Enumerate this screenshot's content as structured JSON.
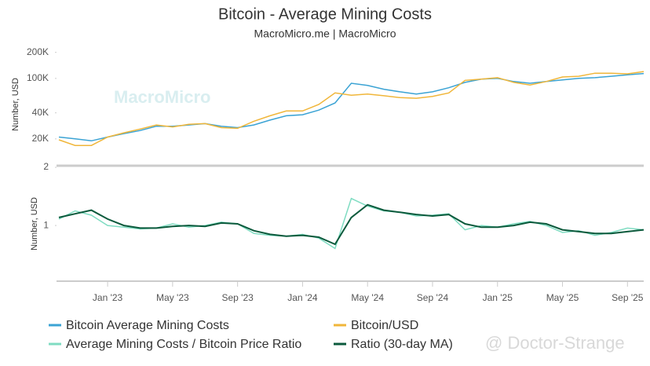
{
  "chart_data": [
    {
      "type": "line",
      "title": "Bitcoin - Average Mining Costs",
      "subtitle": "MacroMicro.me | MacroMicro",
      "watermark": "MacroMicro",
      "ylabel": "Number, USD",
      "log_scale": true,
      "grid": false,
      "ylim": [
        10000,
        250000
      ],
      "yticks": [
        {
          "value": 20000,
          "label": "20K"
        },
        {
          "value": 40000,
          "label": "40K"
        },
        {
          "value": 100000,
          "label": "100K"
        },
        {
          "value": 200000,
          "label": "200K"
        }
      ],
      "x": [
        "2022-10",
        "2022-11",
        "2022-12",
        "2023-01",
        "2023-02",
        "2023-03",
        "2023-04",
        "2023-05",
        "2023-06",
        "2023-07",
        "2023-08",
        "2023-09",
        "2023-10",
        "2023-11",
        "2023-12",
        "2024-01",
        "2024-02",
        "2024-03",
        "2024-04",
        "2024-05",
        "2024-06",
        "2024-07",
        "2024-08",
        "2024-09",
        "2024-10",
        "2024-11",
        "2024-12",
        "2025-01",
        "2025-02",
        "2025-03",
        "2025-04",
        "2025-05",
        "2025-06",
        "2025-07",
        "2025-08",
        "2025-09",
        "2025-10"
      ],
      "series": [
        {
          "name": "Bitcoin Average Mining Costs",
          "color": "#3ba3d4",
          "values": [
            21000,
            20000,
            19000,
            21000,
            23000,
            25000,
            28000,
            28000,
            29000,
            30000,
            28000,
            27000,
            29000,
            33000,
            37000,
            38000,
            43000,
            52000,
            88000,
            83000,
            75000,
            70000,
            66000,
            70000,
            78000,
            90000,
            98000,
            100000,
            92000,
            88000,
            92000,
            96000,
            100000,
            102000,
            106000,
            110000,
            114000
          ]
        },
        {
          "name": "Bitcoin/USD",
          "color": "#f0b63a",
          "values": [
            19500,
            16800,
            16800,
            21000,
            23500,
            26000,
            29000,
            27500,
            29500,
            30000,
            27000,
            26500,
            32000,
            37000,
            42000,
            42000,
            50000,
            68000,
            64000,
            66000,
            63000,
            60000,
            59000,
            62000,
            68000,
            95000,
            98000,
            102000,
            90000,
            84000,
            92000,
            104000,
            106000,
            115000,
            115000,
            113000,
            120000
          ]
        }
      ]
    },
    {
      "type": "line",
      "ylabel": "Number, USD",
      "log_scale": true,
      "grid": false,
      "ylim": [
        0.52,
        2
      ],
      "yticks": [
        1,
        2
      ],
      "x": [
        "2022-10",
        "2022-11",
        "2022-12",
        "2023-01",
        "2023-02",
        "2023-03",
        "2023-04",
        "2023-05",
        "2023-06",
        "2023-07",
        "2023-08",
        "2023-09",
        "2023-10",
        "2023-11",
        "2023-12",
        "2024-01",
        "2024-02",
        "2024-03",
        "2024-04",
        "2024-05",
        "2024-06",
        "2024-07",
        "2024-08",
        "2024-09",
        "2024-10",
        "2024-11",
        "2024-12",
        "2025-01",
        "2025-02",
        "2025-03",
        "2025-04",
        "2025-05",
        "2025-06",
        "2025-07",
        "2025-08",
        "2025-09",
        "2025-10"
      ],
      "xticks": [
        {
          "value": "2023-01",
          "label": "Jan '23"
        },
        {
          "value": "2023-05",
          "label": "May '23"
        },
        {
          "value": "2023-09",
          "label": "Sep '23"
        },
        {
          "value": "2024-01",
          "label": "Jan '24"
        },
        {
          "value": "2024-05",
          "label": "May '24"
        },
        {
          "value": "2024-09",
          "label": "Sep '24"
        },
        {
          "value": "2025-01",
          "label": "Jan '25"
        },
        {
          "value": "2025-05",
          "label": "May '25"
        },
        {
          "value": "2025-09",
          "label": "Sep '25"
        }
      ],
      "series": [
        {
          "name": "Average Mining Costs / Bitcoin Price Ratio",
          "color": "#7fdcc2",
          "values": [
            1.08,
            1.19,
            1.13,
            1.0,
            0.98,
            0.96,
            0.97,
            1.02,
            0.98,
            1.0,
            1.04,
            1.02,
            0.91,
            0.89,
            0.88,
            0.9,
            0.86,
            0.76,
            1.38,
            1.26,
            1.19,
            1.17,
            1.12,
            1.13,
            1.15,
            0.95,
            1.0,
            0.98,
            1.02,
            1.05,
            1.0,
            0.92,
            0.94,
            0.89,
            0.92,
            0.97,
            0.95
          ]
        },
        {
          "name": "Ratio (30-day MA)",
          "color": "#0b5a3c",
          "values": [
            1.1,
            1.15,
            1.2,
            1.08,
            1.0,
            0.97,
            0.97,
            0.99,
            1.0,
            0.99,
            1.03,
            1.02,
            0.94,
            0.9,
            0.88,
            0.89,
            0.87,
            0.8,
            1.1,
            1.28,
            1.2,
            1.17,
            1.14,
            1.12,
            1.14,
            1.02,
            0.98,
            0.98,
            1.0,
            1.04,
            1.02,
            0.95,
            0.93,
            0.91,
            0.91,
            0.93,
            0.95
          ]
        }
      ]
    }
  ],
  "overlay": "@ Doctor-Strange"
}
